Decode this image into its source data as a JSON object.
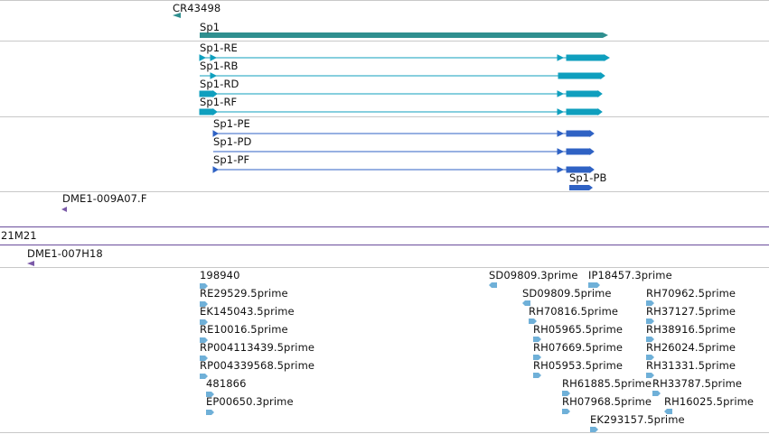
{
  "colors": {
    "gene": "#2f8f8f",
    "transcript_rna": "#0f9fbe",
    "transcript_protein": "#2f62c4",
    "clone": "#7b5aa8",
    "est": "#6fb0d8"
  },
  "tracks": {
    "ncrna": {
      "label": "CR43498"
    },
    "gene": {
      "label": "Sp1"
    },
    "transcripts": [
      {
        "label": "Sp1-RE"
      },
      {
        "label": "Sp1-RB"
      },
      {
        "label": "Sp1-RD"
      },
      {
        "label": "Sp1-RF"
      }
    ],
    "proteins": [
      {
        "label": "Sp1-PE"
      },
      {
        "label": "Sp1-PD"
      },
      {
        "label": "Sp1-PF"
      },
      {
        "label": "Sp1-PB"
      }
    ],
    "clone_ends": {
      "label": "DME1-009A07.F"
    },
    "bac": {
      "label": "21M21"
    },
    "bac2": {
      "label": "DME1-007H18"
    },
    "ests": [
      {
        "label": "198940"
      },
      {
        "label": "RE29529.5prime"
      },
      {
        "label": "EK145043.5prime"
      },
      {
        "label": "RE10016.5prime"
      },
      {
        "label": "RP004113439.5prime"
      },
      {
        "label": "RP004339568.5prime"
      },
      {
        "label": "481866"
      },
      {
        "label": "EP00650.3prime"
      },
      {
        "label": "SD09809.3prime"
      },
      {
        "label": "IP18457.3prime"
      },
      {
        "label": "SD09809.5prime"
      },
      {
        "label": "RH70816.5prime"
      },
      {
        "label": "RH05965.5prime"
      },
      {
        "label": "RH07669.5prime"
      },
      {
        "label": "RH05953.5prime"
      },
      {
        "label": "RH61885.5prime"
      },
      {
        "label": "RH07968.5prime"
      },
      {
        "label": "EK293157.5prime"
      },
      {
        "label": "RH70962.5prime"
      },
      {
        "label": "RH37127.5prime"
      },
      {
        "label": "RH38916.5prime"
      },
      {
        "label": "RH26024.5prime"
      },
      {
        "label": "RH31331.5prime"
      },
      {
        "label": "RH33787.5prime"
      },
      {
        "label": "RH16025.5prime"
      }
    ]
  }
}
